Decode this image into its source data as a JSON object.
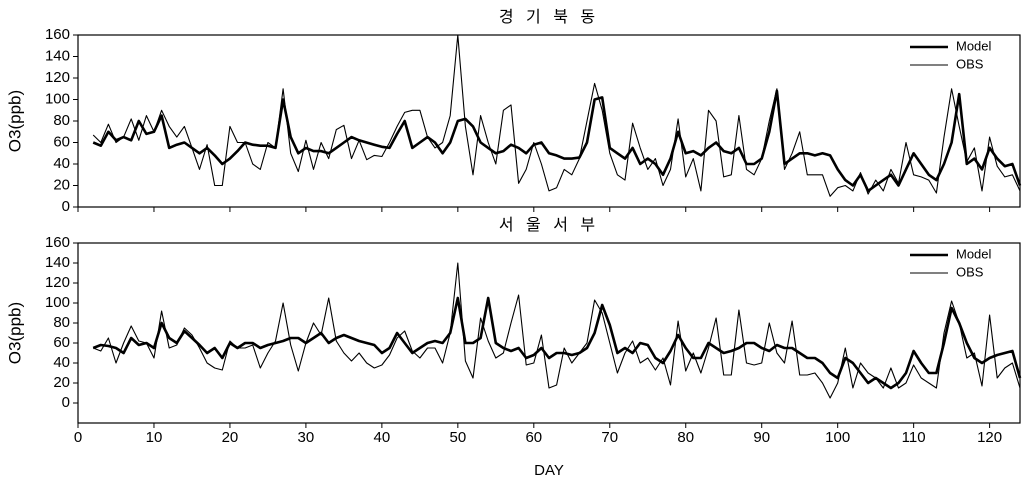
{
  "chart_data": [
    {
      "type": "line",
      "title": "경 기 북 동",
      "ylabel": "O3(ppb)",
      "xlim": [
        0,
        124
      ],
      "xticks": [
        0,
        10,
        20,
        30,
        40,
        50,
        60,
        70,
        80,
        90,
        100,
        110,
        120
      ],
      "ylim": [
        0,
        160
      ],
      "yticks": [
        0,
        20,
        40,
        60,
        80,
        100,
        120,
        140,
        160
      ],
      "legend": "upper right",
      "x": [
        2,
        3,
        4,
        5,
        6,
        7,
        8,
        9,
        10,
        11,
        12,
        13,
        14,
        15,
        16,
        17,
        18,
        19,
        20,
        21,
        22,
        23,
        24,
        25,
        26,
        27,
        28,
        29,
        30,
        31,
        32,
        33,
        34,
        35,
        36,
        37,
        38,
        39,
        40,
        41,
        42,
        43,
        44,
        45,
        46,
        47,
        48,
        49,
        50,
        51,
        52,
        53,
        54,
        55,
        56,
        57,
        58,
        59,
        60,
        61,
        62,
        63,
        64,
        65,
        66,
        67,
        68,
        69,
        70,
        71,
        72,
        73,
        74,
        75,
        76,
        77,
        78,
        79,
        80,
        81,
        82,
        83,
        84,
        85,
        86,
        87,
        88,
        89,
        90,
        91,
        92,
        93,
        94,
        95,
        96,
        97,
        98,
        99,
        100,
        101,
        102,
        103,
        104,
        105,
        106,
        107,
        108,
        109,
        110,
        111,
        112,
        113,
        114,
        115,
        116,
        117,
        118,
        119,
        120,
        121,
        122,
        123,
        124
      ],
      "series": [
        {
          "name": "Model",
          "color": "#000000",
          "values": [
            60,
            57,
            70,
            62,
            65,
            62,
            80,
            68,
            70,
            85,
            55,
            58,
            60,
            55,
            50,
            55,
            48,
            40,
            45,
            52,
            60,
            58,
            57,
            57,
            55,
            100,
            65,
            50,
            55,
            52,
            52,
            50,
            55,
            60,
            65,
            62,
            60,
            58,
            56,
            55,
            68,
            80,
            55,
            60,
            65,
            60,
            50,
            60,
            80,
            82,
            75,
            60,
            55,
            50,
            52,
            58,
            55,
            50,
            58,
            60,
            50,
            48,
            45,
            45,
            46,
            60,
            100,
            102,
            55,
            50,
            45,
            55,
            40,
            45,
            40,
            30,
            45,
            70,
            50,
            52,
            48,
            55,
            60,
            52,
            50,
            55,
            40,
            40,
            45,
            70,
            108,
            40,
            45,
            50,
            50,
            48,
            50,
            48,
            35,
            25,
            20,
            30,
            15,
            20,
            25,
            30,
            20,
            35,
            50,
            40,
            30,
            25,
            40,
            60,
            105,
            40,
            45,
            35,
            55,
            45,
            38,
            40,
            20
          ]
        },
        {
          "name": "OBS",
          "color": "#000000",
          "values": [
            67,
            60,
            77,
            60,
            65,
            82,
            62,
            85,
            70,
            90,
            75,
            65,
            75,
            55,
            35,
            58,
            20,
            20,
            75,
            60,
            60,
            40,
            35,
            60,
            55,
            110,
            50,
            33,
            62,
            35,
            60,
            45,
            72,
            76,
            45,
            62,
            44,
            48,
            47,
            60,
            75,
            88,
            90,
            90,
            65,
            55,
            60,
            85,
            160,
            75,
            30,
            85,
            60,
            40,
            90,
            95,
            22,
            35,
            60,
            40,
            15,
            18,
            35,
            30,
            45,
            80,
            115,
            90,
            50,
            30,
            25,
            78,
            55,
            35,
            45,
            20,
            35,
            82,
            28,
            45,
            15,
            90,
            80,
            28,
            30,
            85,
            35,
            30,
            45,
            80,
            110,
            35,
            50,
            70,
            30,
            30,
            30,
            10,
            18,
            20,
            15,
            32,
            12,
            25,
            15,
            35,
            22,
            60,
            30,
            28,
            25,
            13,
            65,
            110,
            75,
            42,
            55,
            15,
            65,
            38,
            28,
            30,
            15
          ]
        }
      ]
    },
    {
      "type": "line",
      "title": "서 울 서 부",
      "ylabel": "O3(ppb)",
      "xlabel": "DAY",
      "xlim": [
        0,
        124
      ],
      "xticks": [
        0,
        10,
        20,
        30,
        40,
        50,
        60,
        70,
        80,
        90,
        100,
        110,
        120
      ],
      "ylim": [
        -20,
        160
      ],
      "yticks": [
        0,
        20,
        40,
        60,
        80,
        100,
        120,
        140,
        160
      ],
      "legend": "upper right",
      "x": [
        2,
        3,
        4,
        5,
        6,
        7,
        8,
        9,
        10,
        11,
        12,
        13,
        14,
        15,
        16,
        17,
        18,
        19,
        20,
        21,
        22,
        23,
        24,
        25,
        26,
        27,
        28,
        29,
        30,
        31,
        32,
        33,
        34,
        35,
        36,
        37,
        38,
        39,
        40,
        41,
        42,
        43,
        44,
        45,
        46,
        47,
        48,
        49,
        50,
        51,
        52,
        53,
        54,
        55,
        56,
        57,
        58,
        59,
        60,
        61,
        62,
        63,
        64,
        65,
        66,
        67,
        68,
        69,
        70,
        71,
        72,
        73,
        74,
        75,
        76,
        77,
        78,
        79,
        80,
        81,
        82,
        83,
        84,
        85,
        86,
        87,
        88,
        89,
        90,
        91,
        92,
        93,
        94,
        95,
        96,
        97,
        98,
        99,
        100,
        101,
        102,
        103,
        104,
        105,
        106,
        107,
        108,
        109,
        110,
        111,
        112,
        113,
        114,
        115,
        116,
        117,
        118,
        119,
        120,
        121,
        122,
        123,
        124
      ],
      "series": [
        {
          "name": "Model",
          "color": "#000000",
          "values": [
            55,
            58,
            57,
            55,
            50,
            65,
            58,
            60,
            55,
            80,
            65,
            60,
            72,
            65,
            58,
            50,
            55,
            45,
            60,
            55,
            60,
            60,
            55,
            58,
            60,
            62,
            65,
            65,
            60,
            65,
            70,
            60,
            65,
            68,
            65,
            62,
            60,
            58,
            50,
            55,
            70,
            60,
            50,
            55,
            60,
            62,
            60,
            70,
            105,
            60,
            60,
            65,
            105,
            60,
            55,
            52,
            55,
            45,
            48,
            55,
            45,
            50,
            50,
            48,
            50,
            55,
            70,
            98,
            78,
            50,
            55,
            50,
            60,
            58,
            45,
            40,
            52,
            68,
            55,
            45,
            45,
            60,
            55,
            50,
            52,
            55,
            60,
            60,
            55,
            52,
            58,
            55,
            55,
            50,
            45,
            45,
            40,
            30,
            25,
            45,
            40,
            30,
            20,
            25,
            20,
            15,
            20,
            30,
            52,
            40,
            30,
            30,
            60,
            95,
            80,
            60,
            45,
            40,
            45,
            48,
            50,
            52,
            25
          ]
        },
        {
          "name": "OBS",
          "color": "#000000",
          "values": [
            55,
            52,
            65,
            40,
            60,
            77,
            62,
            60,
            45,
            92,
            55,
            58,
            75,
            68,
            55,
            40,
            35,
            33,
            62,
            55,
            55,
            58,
            35,
            50,
            62,
            100,
            58,
            32,
            60,
            80,
            68,
            105,
            62,
            50,
            42,
            50,
            40,
            35,
            38,
            48,
            65,
            72,
            52,
            45,
            55,
            55,
            40,
            70,
            140,
            42,
            25,
            85,
            62,
            45,
            50,
            80,
            108,
            38,
            40,
            68,
            15,
            18,
            55,
            40,
            50,
            60,
            103,
            90,
            60,
            30,
            50,
            62,
            40,
            45,
            33,
            45,
            18,
            82,
            32,
            50,
            30,
            55,
            85,
            28,
            28,
            93,
            40,
            38,
            40,
            80,
            50,
            40,
            82,
            28,
            28,
            30,
            20,
            5,
            20,
            55,
            15,
            40,
            30,
            25,
            15,
            35,
            15,
            20,
            38,
            25,
            20,
            15,
            70,
            102,
            80,
            45,
            50,
            17,
            88,
            25,
            35,
            40,
            15
          ]
        }
      ]
    }
  ]
}
